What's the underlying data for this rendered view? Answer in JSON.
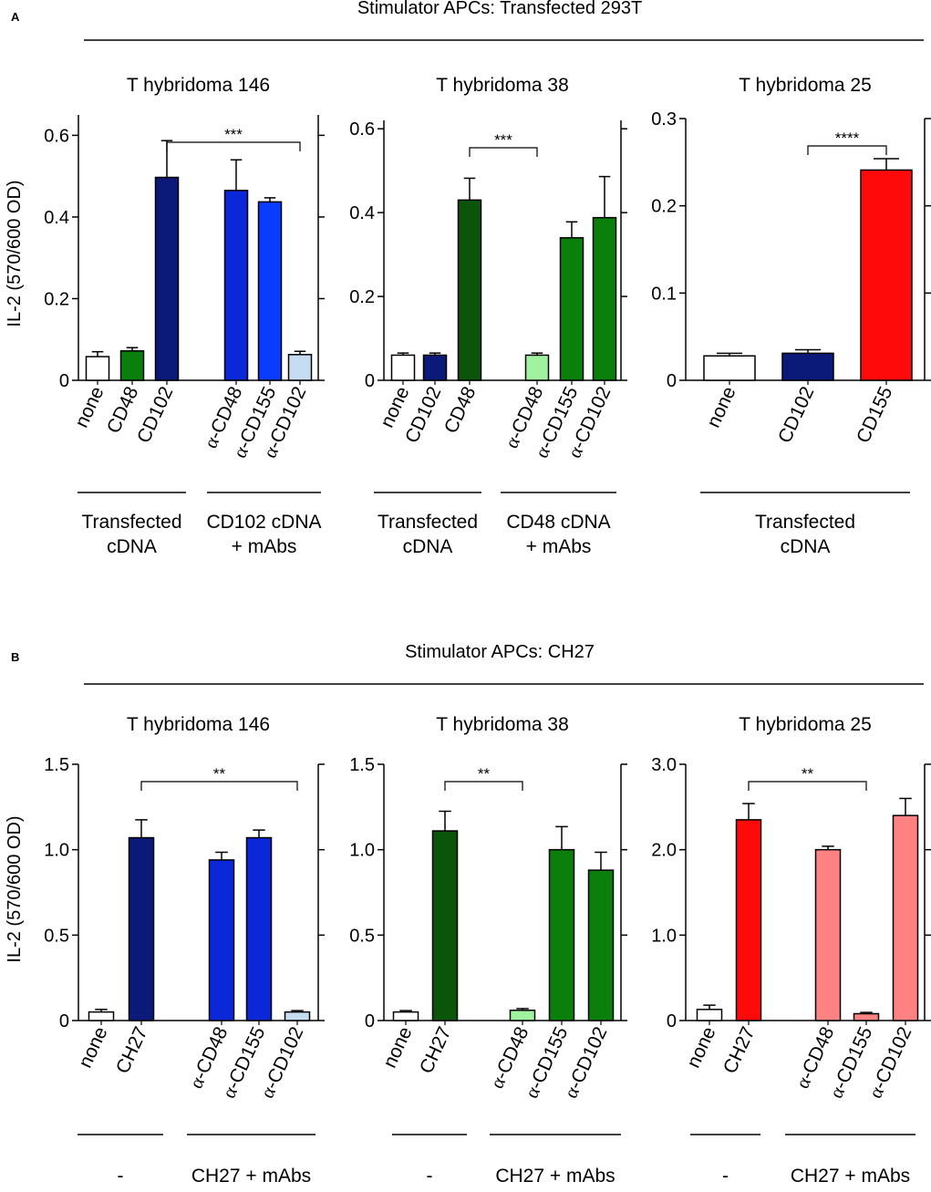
{
  "panels": [
    {
      "letter": "A",
      "stimulator_title": "Stimulator APCs: Transfected 293T"
    },
    {
      "letter": "B",
      "stimulator_title": "Stimulator APCs: CH27"
    }
  ],
  "ylabel": "IL-2 (570/600 OD)",
  "colors": {
    "white": "#ffffff",
    "navy": "#0b1a78",
    "blue": "#0a28d8",
    "brightblue": "#0a3cff",
    "lightblue": "#c5dcf3",
    "green": "#0b7f0b",
    "darkgreen": "#0a550a",
    "lightgreen": "#a0f2a0",
    "red": "#ff0a0a",
    "pink": "#ff8282"
  },
  "chart_data": [
    {
      "id": "A1",
      "type": "bar",
      "title": "T hybridoma 146",
      "ylim": [
        0,
        0.65
      ],
      "yticks": [
        0,
        0.2,
        0.4,
        0.6
      ],
      "ytick_labels": [
        "0",
        "0.2",
        "0.4",
        "0.6"
      ],
      "categories": [
        "none",
        "CD48",
        "CD102",
        "α-CD48",
        "α-CD155",
        "α-CD102"
      ],
      "values": [
        0.058,
        0.072,
        0.497,
        0.465,
        0.437,
        0.063
      ],
      "errors": [
        0.012,
        0.008,
        0.09,
        0.075,
        0.01,
        0.008
      ],
      "colors": [
        "white",
        "green",
        "navy",
        "blue",
        "brightblue",
        "lightblue"
      ],
      "groups": [
        {
          "lines": [
            "Transfected",
            "cDNA"
          ],
          "from": 0,
          "to": 2
        },
        {
          "lines": [
            "CD102 cDNA",
            "+ mAbs"
          ],
          "from": 3,
          "to": 5
        }
      ],
      "significance": {
        "from": 2,
        "to": 5,
        "label": "***"
      }
    },
    {
      "id": "A2",
      "type": "bar",
      "title": "T hybridoma 38",
      "ylim": [
        0,
        0.62
      ],
      "yticks": [
        0,
        0.2,
        0.4,
        0.6
      ],
      "ytick_labels": [
        "0",
        "0.2",
        "0.4",
        "0.6"
      ],
      "categories": [
        "none",
        "CD102",
        "CD48",
        "α-CD48",
        "α-CD155",
        "α-CD102"
      ],
      "values": [
        0.06,
        0.06,
        0.43,
        0.06,
        0.34,
        0.388
      ],
      "errors": [
        0.005,
        0.005,
        0.052,
        0.005,
        0.038,
        0.098
      ],
      "colors": [
        "white",
        "navy",
        "darkgreen",
        "lightgreen",
        "green",
        "green"
      ],
      "groups": [
        {
          "lines": [
            "Transfected",
            "cDNA"
          ],
          "from": 0,
          "to": 2
        },
        {
          "lines": [
            "CD48 cDNA",
            "+ mAbs"
          ],
          "from": 3,
          "to": 5
        }
      ],
      "significance": {
        "from": 2,
        "to": 3,
        "label": "***"
      }
    },
    {
      "id": "A3",
      "type": "bar",
      "title": "T hybridoma 25",
      "ylim": [
        0,
        0.3
      ],
      "yticks": [
        0,
        0.1,
        0.2,
        0.3
      ],
      "ytick_labels": [
        "0",
        "0.1",
        "0.2",
        "0.3"
      ],
      "categories": [
        "none",
        "CD102",
        "CD155"
      ],
      "values": [
        0.028,
        0.031,
        0.241
      ],
      "errors": [
        0.003,
        0.004,
        0.013
      ],
      "colors": [
        "white",
        "navy",
        "red"
      ],
      "groups": [
        {
          "lines": [
            "Transfected",
            "cDNA"
          ],
          "from": 0,
          "to": 2
        }
      ],
      "significance": {
        "from": 1,
        "to": 2,
        "label": "****"
      }
    },
    {
      "id": "B1",
      "type": "bar",
      "title": "T hybridoma 146",
      "ylim": [
        0,
        1.5
      ],
      "yticks": [
        0,
        0.5,
        1.0,
        1.5
      ],
      "ytick_labels": [
        "0",
        "0.5",
        "1.0",
        "1.5"
      ],
      "categories": [
        "none",
        "CH27",
        "α-CD48",
        "α-CD155",
        "α-CD102"
      ],
      "values": [
        0.05,
        1.07,
        0.94,
        1.07,
        0.05
      ],
      "errors": [
        0.015,
        0.105,
        0.045,
        0.045,
        0.008
      ],
      "colors": [
        "white",
        "navy",
        "blue",
        "blue",
        "lightblue"
      ],
      "groups": [
        {
          "lines": [
            "-"
          ],
          "from": 0,
          "to": 1
        },
        {
          "lines": [
            "CH27 + mAbs"
          ],
          "from": 2,
          "to": 4
        }
      ],
      "significance": {
        "from": 1,
        "to": 4,
        "label": "**"
      }
    },
    {
      "id": "B2",
      "type": "bar",
      "title": "T hybridoma 38",
      "ylim": [
        0,
        1.5
      ],
      "yticks": [
        0,
        0.5,
        1.0,
        1.5
      ],
      "ytick_labels": [
        "0",
        "0.5",
        "1.0",
        "1.5"
      ],
      "categories": [
        "none",
        "CH27",
        "α-CD48",
        "α-CD155",
        "α-CD102"
      ],
      "values": [
        0.05,
        1.11,
        0.06,
        1.0,
        0.88
      ],
      "errors": [
        0.008,
        0.115,
        0.01,
        0.135,
        0.105
      ],
      "colors": [
        "white",
        "darkgreen",
        "lightgreen",
        "green",
        "green"
      ],
      "groups": [
        {
          "lines": [
            "-"
          ],
          "from": 0,
          "to": 1
        },
        {
          "lines": [
            "CH27 + mAbs"
          ],
          "from": 2,
          "to": 4
        }
      ],
      "significance": {
        "from": 1,
        "to": 2,
        "label": "**"
      }
    },
    {
      "id": "B3",
      "type": "bar",
      "title": "T hybridoma 25",
      "ylim": [
        0,
        3.0
      ],
      "yticks": [
        0,
        1.0,
        2.0,
        3.0
      ],
      "ytick_labels": [
        "0",
        "1.0",
        "2.0",
        "3.0"
      ],
      "categories": [
        "none",
        "CH27",
        "α-CD48",
        "α-CD155",
        "α-CD102"
      ],
      "values": [
        0.13,
        2.35,
        2.0,
        0.08,
        2.4
      ],
      "errors": [
        0.05,
        0.19,
        0.04,
        0.015,
        0.2
      ],
      "colors": [
        "white",
        "red",
        "pink",
        "pink",
        "pink"
      ],
      "groups": [
        {
          "lines": [
            "-"
          ],
          "from": 0,
          "to": 1
        },
        {
          "lines": [
            "CH27 + mAbs"
          ],
          "from": 2,
          "to": 4
        }
      ],
      "significance": {
        "from": 1,
        "to": 3,
        "label": "**"
      }
    }
  ]
}
